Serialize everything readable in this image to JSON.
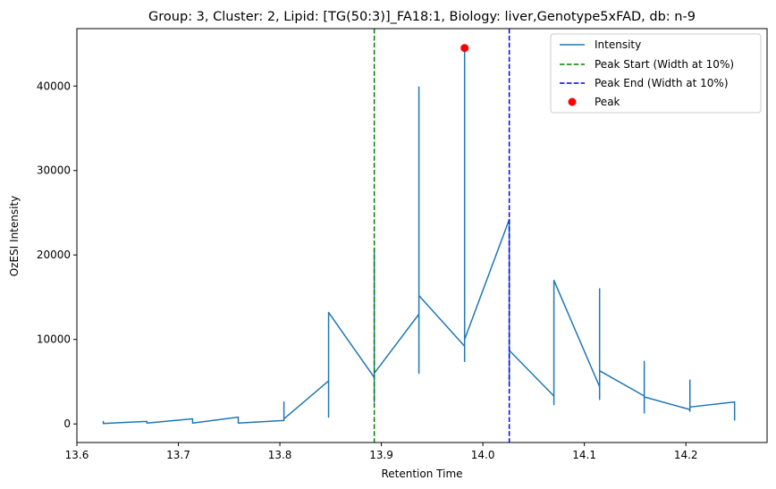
{
  "chart_data": {
    "type": "line",
    "title": "Group: 3, Cluster: 2, Lipid: [TG(50:3)]_FA18:1, Biology: liver,Genotype5xFAD, db: n-9",
    "xlabel": "Retention Time",
    "ylabel": "OzESI Intensity",
    "xlim": [
      13.6,
      14.28
    ],
    "ylim": [
      -2200,
      46800
    ],
    "xticks": [
      13.6,
      13.7,
      13.8,
      13.9,
      14.0,
      14.1,
      14.2
    ],
    "xtick_labels": [
      "13.6",
      "13.7",
      "13.8",
      "13.9",
      "14.0",
      "14.1",
      "14.2"
    ],
    "yticks": [
      0,
      10000,
      20000,
      30000,
      40000
    ],
    "ytick_labels": [
      "0",
      "10000",
      "20000",
      "30000",
      "40000"
    ],
    "grid": false,
    "legend_position": "top-right",
    "series": [
      {
        "name": "Intensity",
        "color": "#1f77b4",
        "style": "solid",
        "points": [
          [
            13.626,
            350
          ],
          [
            13.626,
            50
          ],
          [
            13.669,
            300
          ],
          [
            13.669,
            100
          ],
          [
            13.714,
            600
          ],
          [
            13.714,
            100
          ],
          [
            13.759,
            800
          ],
          [
            13.759,
            100
          ],
          [
            13.804,
            400
          ],
          [
            13.804,
            2600
          ],
          [
            13.804,
            600
          ],
          [
            13.848,
            5100
          ],
          [
            13.848,
            800
          ],
          [
            13.848,
            13200
          ],
          [
            13.893,
            5500
          ],
          [
            13.893,
            20700
          ],
          [
            13.893,
            2600
          ],
          [
            13.893,
            6000
          ],
          [
            13.937,
            13000
          ],
          [
            13.937,
            39900
          ],
          [
            13.937,
            6000
          ],
          [
            13.937,
            15200
          ],
          [
            13.982,
            9200
          ],
          [
            13.982,
            44500
          ],
          [
            13.982,
            7400
          ],
          [
            13.982,
            10000
          ],
          [
            14.026,
            24200
          ],
          [
            14.026,
            5000
          ],
          [
            14.026,
            8700
          ],
          [
            14.07,
            3300
          ],
          [
            14.07,
            2300
          ],
          [
            14.07,
            17000
          ],
          [
            14.115,
            4400
          ],
          [
            14.115,
            16000
          ],
          [
            14.115,
            2900
          ],
          [
            14.115,
            6300
          ],
          [
            14.159,
            3300
          ],
          [
            14.159,
            7400
          ],
          [
            14.159,
            1300
          ],
          [
            14.159,
            3200
          ],
          [
            14.204,
            1700
          ],
          [
            14.204,
            5200
          ],
          [
            14.204,
            1500
          ],
          [
            14.204,
            2000
          ],
          [
            14.248,
            2600
          ],
          [
            14.248,
            400
          ]
        ]
      },
      {
        "name": "Peak Start (Width at 10%)",
        "color": "#008000",
        "style": "dashed",
        "type": "vline",
        "x": 13.893
      },
      {
        "name": "Peak End (Width at 10%)",
        "color": "#0000ff",
        "style": "dashed",
        "type": "vline",
        "x": 14.026
      },
      {
        "name": "Peak",
        "color": "#ff0000",
        "style": "marker",
        "type": "scatter",
        "points": [
          [
            13.982,
            44500
          ]
        ]
      }
    ]
  }
}
